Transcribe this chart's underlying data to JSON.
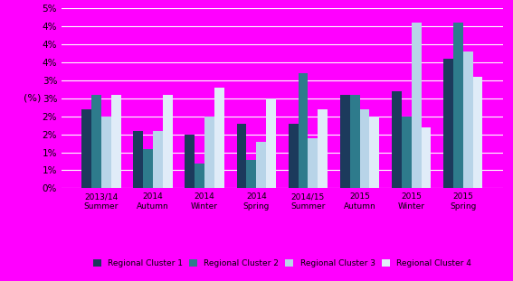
{
  "categories": [
    "2013/14\nSummer",
    "2014\nAutumn",
    "2014\nWinter",
    "2014\nSpring",
    "2014/15\nSummer",
    "2015\nAutumn",
    "2015\nWinter",
    "2015\nSpring"
  ],
  "series": {
    "Regional Cluster 1": [
      0.022,
      0.016,
      0.015,
      0.018,
      0.018,
      0.026,
      0.027,
      0.036
    ],
    "Regional Cluster 2": [
      0.026,
      0.011,
      0.007,
      0.008,
      0.032,
      0.026,
      0.02,
      0.046
    ],
    "Regional Cluster 3": [
      0.02,
      0.016,
      0.02,
      0.013,
      0.014,
      0.022,
      0.046,
      0.038
    ],
    "Regional Cluster 4": [
      0.026,
      0.026,
      0.028,
      0.025,
      0.022,
      0.02,
      0.017,
      0.031
    ]
  },
  "colors": {
    "Regional Cluster 1": "#1C3A5C",
    "Regional Cluster 2": "#2E7B8C",
    "Regional Cluster 3": "#B8D4E8",
    "Regional Cluster 4": "#E0ECF8"
  },
  "ylim_max": 0.05,
  "ytick_values": [
    0.0,
    0.005,
    0.01,
    0.015,
    0.02,
    0.025,
    0.03,
    0.035,
    0.04,
    0.045,
    0.05
  ],
  "ytick_labels": [
    "0%",
    "1%",
    "1%",
    "2%",
    "2%",
    "3%",
    "3%",
    "4%",
    "4%",
    "4%",
    "5%"
  ],
  "ylabel": "(%)",
  "background_color": "#FF00FF",
  "grid_color": "#FFFFFF",
  "bar_width": 0.19,
  "legend_labels": [
    "Regional Cluster 1",
    "Regional Cluster 2",
    "Regional Cluster 3",
    "Regional Cluster 4"
  ]
}
